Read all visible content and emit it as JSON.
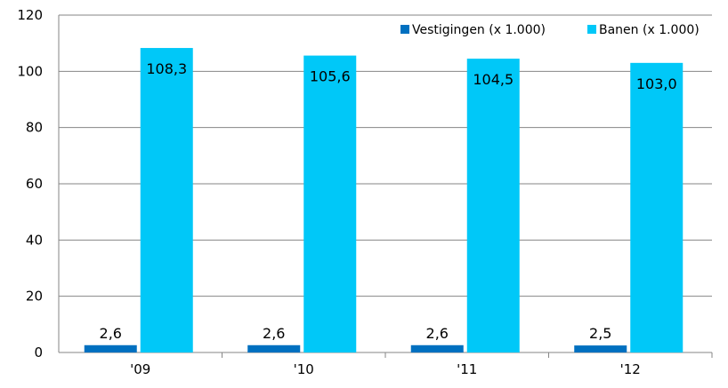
{
  "chart_data": {
    "type": "bar",
    "title": "",
    "xlabel": "",
    "ylabel": "",
    "categories": [
      "'09",
      "'10",
      "'11",
      "'12"
    ],
    "series": [
      {
        "name": "Vestigingen (x 1.000)",
        "color": "#0070C0",
        "values": [
          2.6,
          2.6,
          2.6,
          2.5
        ],
        "labels": [
          "2,6",
          "2,6",
          "2,6",
          "2,5"
        ]
      },
      {
        "name": "Banen (x 1.000)",
        "color": "#00C8F8",
        "values": [
          108.3,
          105.6,
          104.5,
          103.0
        ],
        "labels": [
          "108,3",
          "105,6",
          "104,5",
          "103,0"
        ]
      }
    ],
    "ylim": [
      0,
      120
    ],
    "yticks": [
      0,
      20,
      40,
      60,
      80,
      100,
      120
    ],
    "grid": "horizontal",
    "legend_position": "top-right"
  }
}
